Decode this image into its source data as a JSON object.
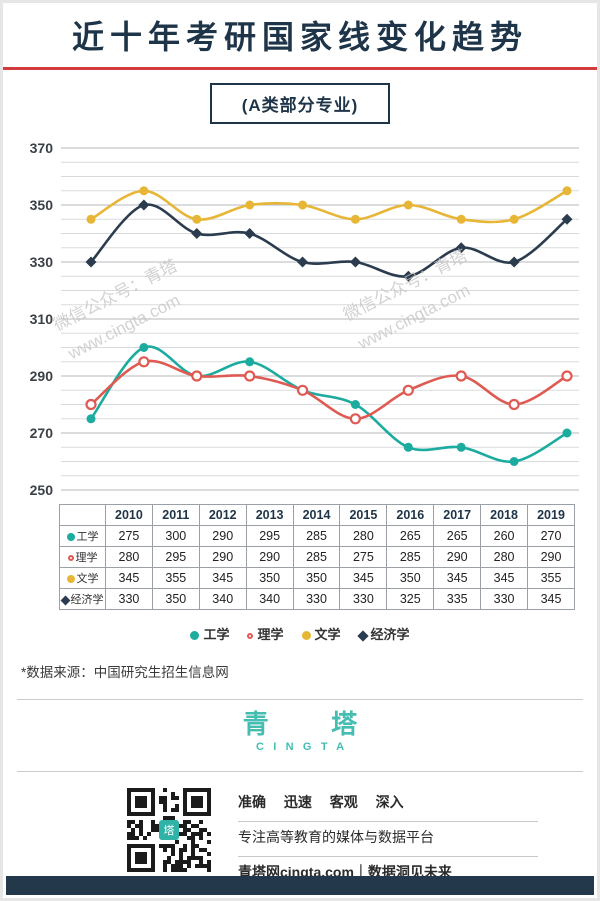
{
  "header": {
    "title": "近十年考研国家线变化趋势",
    "subtitle": "(A类部分专业)"
  },
  "watermark": {
    "line1": "微信公众号：青塔",
    "line2": "www.cingta.com"
  },
  "chart_data": {
    "type": "line",
    "title": "近十年考研国家线变化趋势（A类部分专业）",
    "categories": [
      "2010",
      "2011",
      "2012",
      "2013",
      "2014",
      "2015",
      "2016",
      "2017",
      "2018",
      "2019"
    ],
    "series": [
      {
        "name": "工学",
        "color": "#1cab9f",
        "marker": "circle-filled",
        "values": [
          275,
          300,
          290,
          295,
          285,
          280,
          265,
          265,
          260,
          270
        ]
      },
      {
        "name": "理学",
        "color": "#df5a52",
        "marker": "circle-open",
        "values": [
          280,
          295,
          290,
          290,
          285,
          275,
          285,
          290,
          280,
          290
        ]
      },
      {
        "name": "文学",
        "color": "#e8b637",
        "marker": "circle-filled",
        "values": [
          345,
          355,
          345,
          350,
          350,
          345,
          350,
          345,
          345,
          355
        ]
      },
      {
        "name": "经济学",
        "color": "#2b3c4f",
        "marker": "diamond-filled",
        "values": [
          330,
          350,
          340,
          340,
          330,
          330,
          325,
          335,
          330,
          345
        ]
      }
    ],
    "ylim": [
      250,
      370
    ],
    "yticks": [
      250,
      270,
      290,
      310,
      330,
      350,
      370
    ],
    "grid_interval": 5,
    "grid": true,
    "legend_position": "bottom"
  },
  "source_note": "*数据来源：中国研究生招生信息网",
  "brand": {
    "name_cn": "青塔",
    "name_en": "CINGTA"
  },
  "footer": {
    "slogan1": "准确 迅速 客观 深入",
    "slogan2": "专注高等教育的媒体与数据平台",
    "slogan3": "青塔网cingta.com｜数据洞见未来"
  }
}
